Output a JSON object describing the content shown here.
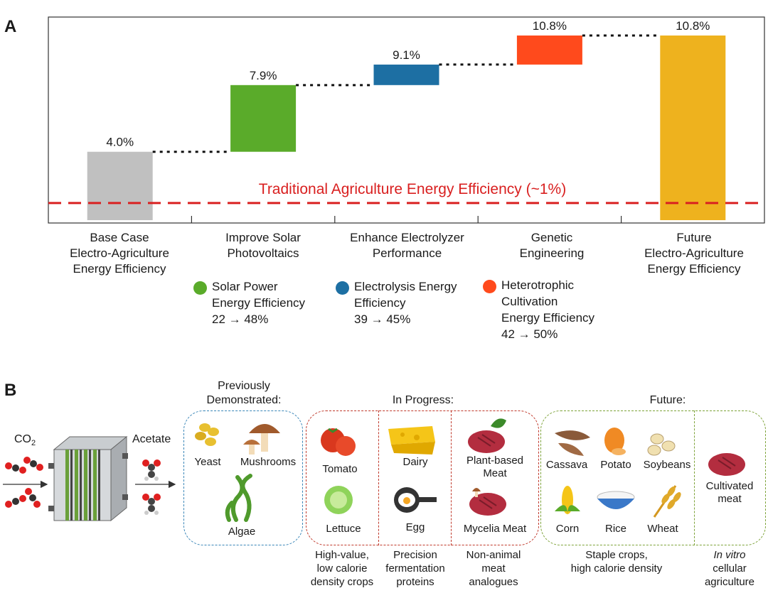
{
  "panel_a": {
    "label": "A",
    "baseline_label": "Traditional Agriculture Energy Efficiency (~1%)",
    "categories": [
      "Base Case\nElectro-Agriculture\nEnergy Efficiency",
      "Improve Solar\nPhotovoltaics",
      "Enhance Electrolyzer\nPerformance",
      "Genetic\nEngineering",
      "Future\nElectro-Agriculture\nEnergy Efficiency"
    ],
    "legend": [
      {
        "text": "Solar Power\nEnergy Efficiency\n22 → 48%",
        "color": "#5aab2a"
      },
      {
        "text": "Electrolysis Energy\nEfficiency\n39 → 45%",
        "color": "#1d6fa3"
      },
      {
        "text": "Heterotrophic\nCultivation\nEnergy Efficiency\n42 → 50%",
        "color": "#ff4a1c"
      }
    ]
  },
  "chart_data": {
    "type": "bar",
    "subtype": "waterfall",
    "categories": [
      "Base Case Electro-Agriculture Energy Efficiency",
      "Improve Solar Photovoltaics",
      "Enhance Electrolyzer Performance",
      "Genetic Engineering",
      "Future Electro-Agriculture Energy Efficiency"
    ],
    "values": [
      4.0,
      7.9,
      9.1,
      10.8,
      10.8
    ],
    "labels": [
      "4.0%",
      "7.9%",
      "9.1%",
      "10.8%",
      "10.8%"
    ],
    "starts": [
      0,
      4.0,
      7.9,
      9.1,
      0
    ],
    "colors": [
      "#c0c0c0",
      "#5aab2a",
      "#1d6fa3",
      "#ff4a1c",
      "#eeb21e"
    ],
    "reference_line": {
      "value": 1,
      "label": "Traditional Agriculture Energy Efficiency (~1%)",
      "color": "#d92020"
    },
    "ylim": [
      0,
      11.5
    ],
    "grid": false
  },
  "panel_b": {
    "label": "B",
    "co2": "CO",
    "co2_sub": "2",
    "acetate": "Acetate",
    "groups": [
      {
        "title": "Previously\nDemonstrated:",
        "border": "#3a86b8",
        "items": [
          "Yeast",
          "Mushrooms",
          "Algae"
        ]
      },
      {
        "title": "In Progress:",
        "border": "#c0392b",
        "items": [
          "Tomato",
          "Lettuce",
          "Dairy",
          "Egg",
          "Plant-based\nMeat",
          "Mycelia Meat"
        ]
      },
      {
        "title": "Future:",
        "border": "#7ea33a",
        "items": [
          "Cassava",
          "Potato",
          "Soybeans",
          "Corn",
          "Rice",
          "Wheat",
          "Cultivated\nmeat"
        ]
      }
    ],
    "captions": [
      "High-value,\nlow calorie\ndensity crops",
      "Precision\nfermentation\nproteins",
      "Non-animal\nmeat\nanalogues",
      "Staple crops,\nhigh calorie density",
      "In vitro",
      "cellular\nagriculture"
    ]
  }
}
